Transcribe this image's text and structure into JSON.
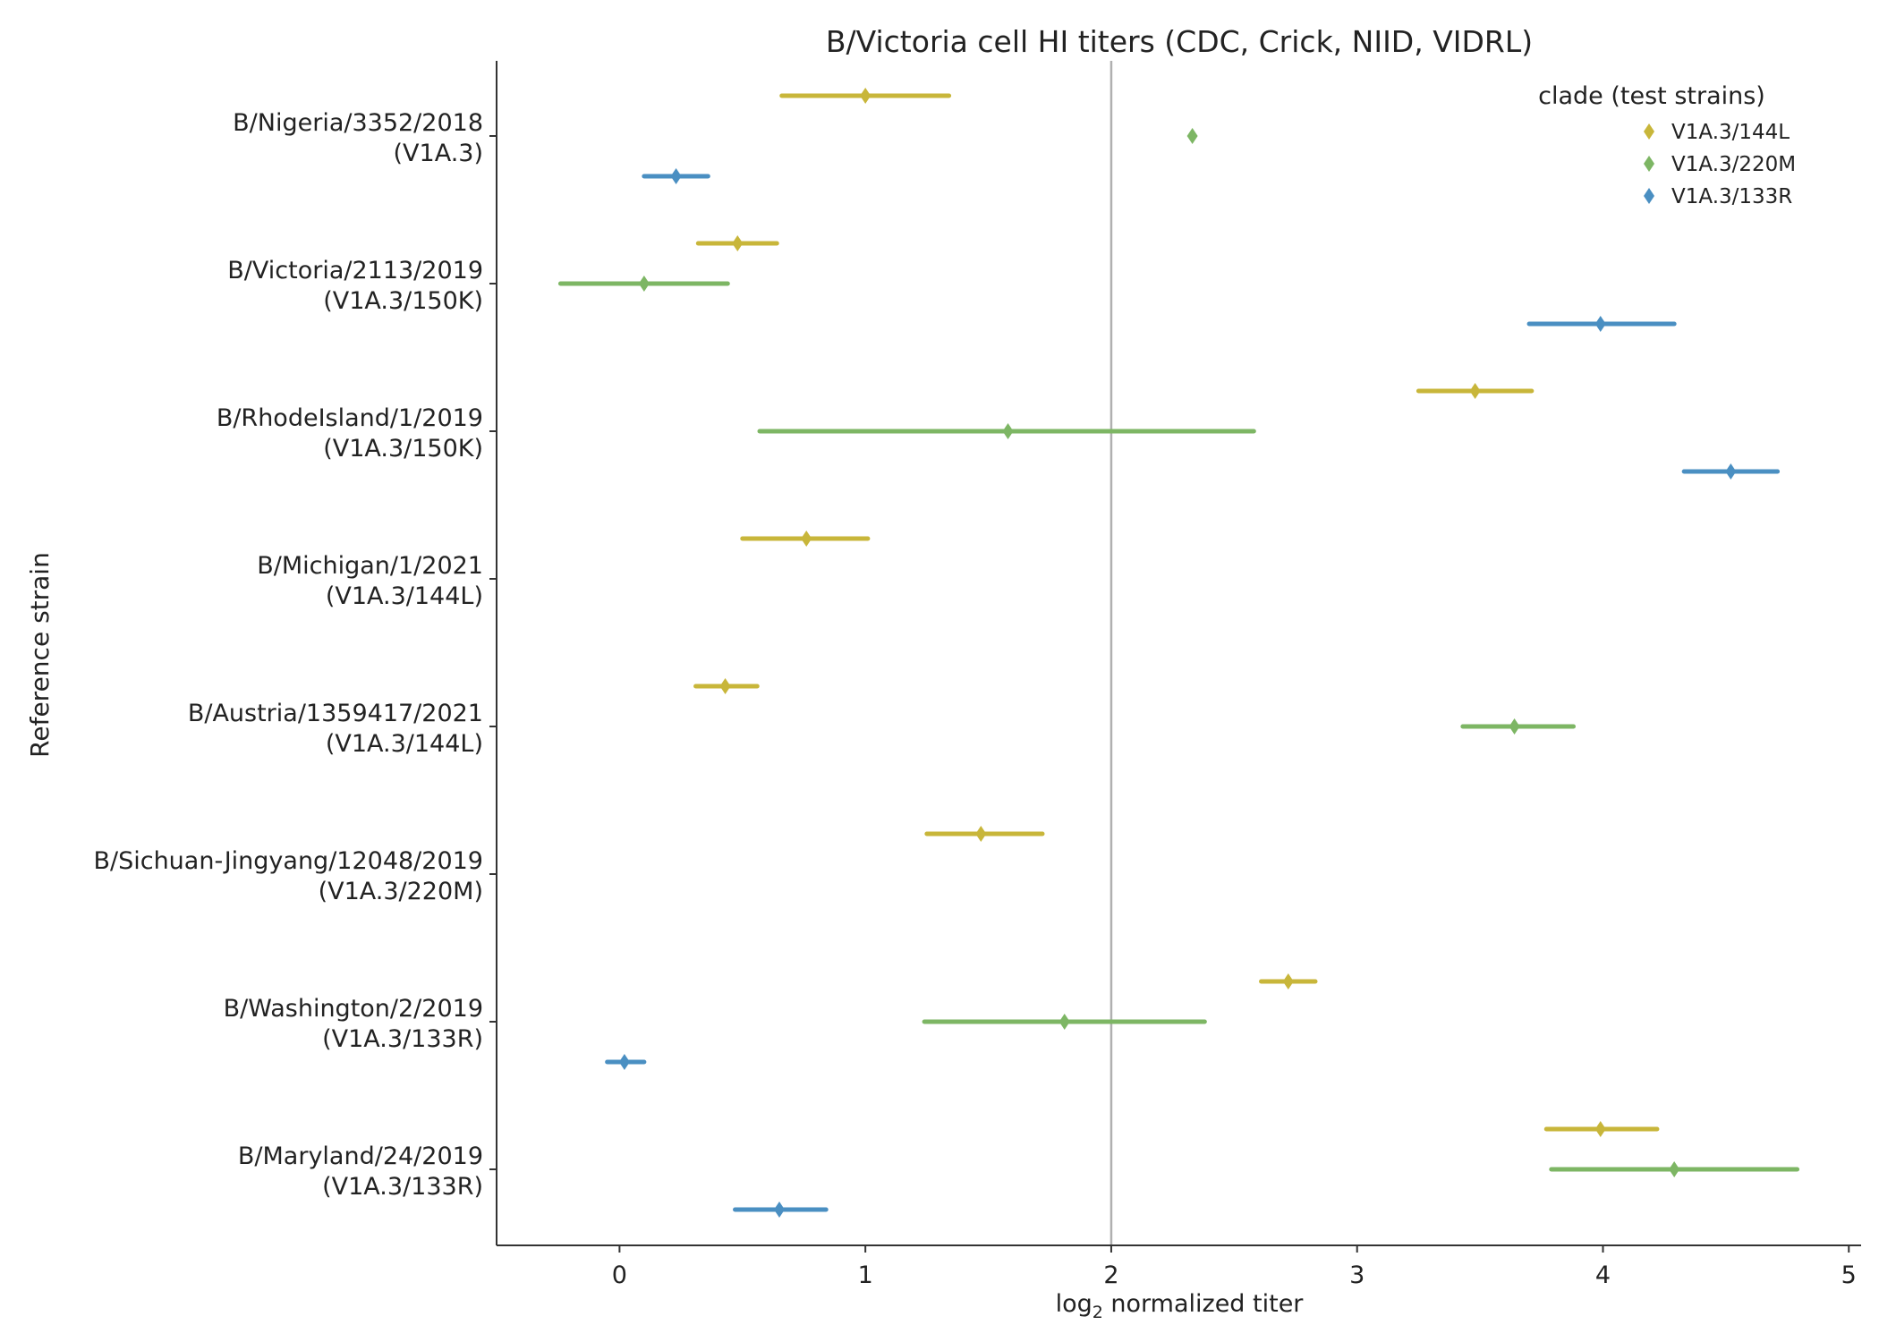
{
  "chart_data": {
    "type": "scatter",
    "title": "B/Victoria cell HI titers (CDC, Crick, NIID, VIDRL)",
    "xlabel_prefix": "log",
    "xlabel_sub": "2",
    "xlabel_suffix": " normalized titer",
    "ylabel": "Reference strain",
    "xlim": [
      -0.5,
      5.05
    ],
    "xticks": [
      0,
      1,
      2,
      3,
      4,
      5
    ],
    "reference_line_x": 2,
    "grid": false,
    "legend": {
      "title": "clade (test strains)",
      "placement": "top-right"
    },
    "categories": [
      {
        "name": "B/Nigeria/3352/2018",
        "clade": "(V1A.3)"
      },
      {
        "name": "B/Victoria/2113/2019",
        "clade": "(V1A.3/150K)"
      },
      {
        "name": "B/RhodeIsland/1/2019",
        "clade": "(V1A.3/150K)"
      },
      {
        "name": "B/Michigan/1/2021",
        "clade": "(V1A.3/144L)"
      },
      {
        "name": "B/Austria/1359417/2021",
        "clade": "(V1A.3/144L)"
      },
      {
        "name": "B/Sichuan-Jingyang/12048/2019",
        "clade": "(V1A.3/220M)"
      },
      {
        "name": "B/Washington/2/2019",
        "clade": "(V1A.3/133R)"
      },
      {
        "name": "B/Maryland/24/2019",
        "clade": "(V1A.3/133R)"
      }
    ],
    "series": [
      {
        "name": "V1A.3/144L",
        "color": "#c8b63a",
        "points": [
          {
            "y": 0,
            "x": 1.0,
            "lo": 0.66,
            "hi": 1.34
          },
          {
            "y": 1,
            "x": 0.48,
            "lo": 0.32,
            "hi": 0.64
          },
          {
            "y": 2,
            "x": 3.48,
            "lo": 3.25,
            "hi": 3.71
          },
          {
            "y": 3,
            "x": 0.76,
            "lo": 0.5,
            "hi": 1.01
          },
          {
            "y": 4,
            "x": 0.43,
            "lo": 0.31,
            "hi": 0.56
          },
          {
            "y": 5,
            "x": 1.47,
            "lo": 1.25,
            "hi": 1.72
          },
          {
            "y": 6,
            "x": 2.72,
            "lo": 2.61,
            "hi": 2.83
          },
          {
            "y": 7,
            "x": 3.99,
            "lo": 3.77,
            "hi": 4.22
          }
        ]
      },
      {
        "name": "V1A.3/220M",
        "color": "#7db664",
        "points": [
          {
            "y": 0,
            "x": 2.33,
            "lo": 2.33,
            "hi": 2.33
          },
          {
            "y": 1,
            "x": 0.1,
            "lo": -0.24,
            "hi": 0.44
          },
          {
            "y": 2,
            "x": 1.58,
            "lo": 0.57,
            "hi": 2.58
          },
          {
            "y": 4,
            "x": 3.64,
            "lo": 3.43,
            "hi": 3.88
          },
          {
            "y": 6,
            "x": 1.81,
            "lo": 1.24,
            "hi": 2.38
          },
          {
            "y": 7,
            "x": 4.29,
            "lo": 3.79,
            "hi": 4.79
          }
        ]
      },
      {
        "name": "V1A.3/133R",
        "color": "#4a8fc2",
        "points": [
          {
            "y": 0,
            "x": 0.23,
            "lo": 0.1,
            "hi": 0.36
          },
          {
            "y": 1,
            "x": 3.99,
            "lo": 3.7,
            "hi": 4.29
          },
          {
            "y": 2,
            "x": 4.52,
            "lo": 4.33,
            "hi": 4.71
          },
          {
            "y": 6,
            "x": 0.02,
            "lo": -0.05,
            "hi": 0.1
          },
          {
            "y": 7,
            "x": 0.65,
            "lo": 0.47,
            "hi": 0.84
          }
        ]
      }
    ]
  }
}
